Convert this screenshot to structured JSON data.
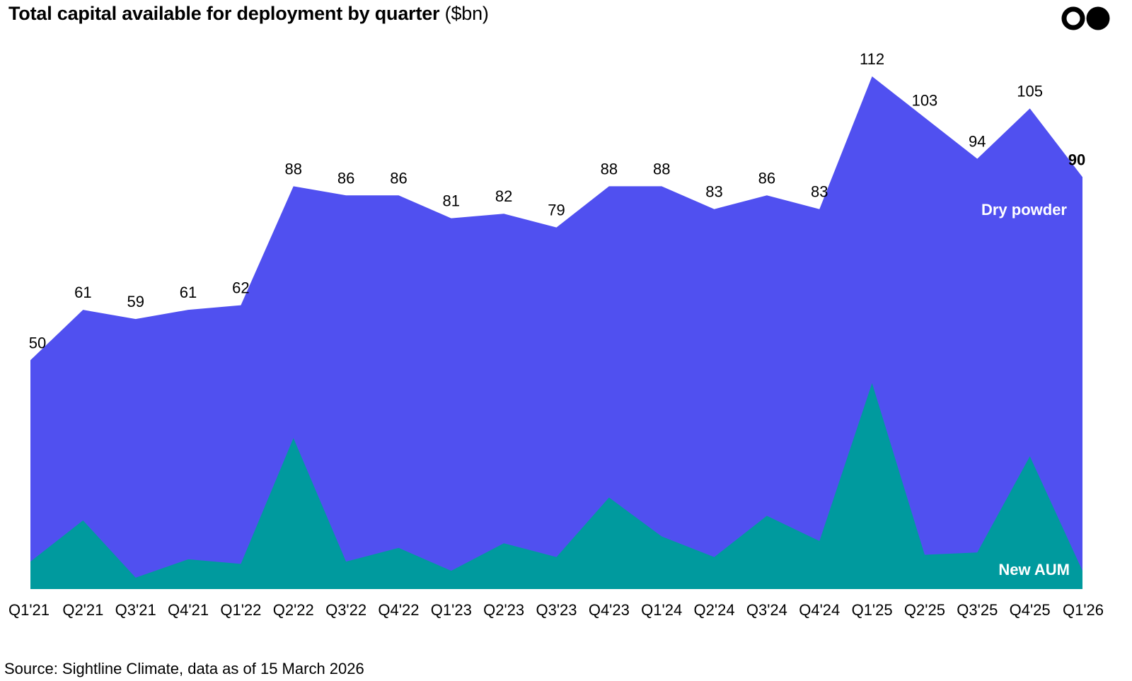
{
  "chart_data": {
    "type": "area",
    "title": "Total capital available for deployment by quarter",
    "title_unit": "($bn)",
    "categories": [
      "Q1'21",
      "Q2'21",
      "Q3'21",
      "Q4'21",
      "Q1'22",
      "Q2'22",
      "Q3'22",
      "Q4'22",
      "Q1'23",
      "Q2'23",
      "Q3'23",
      "Q4'23",
      "Q1'24",
      "Q2'24",
      "Q3'24",
      "Q4'24",
      "Q1'25",
      "Q2'25",
      "Q3'25",
      "Q4'25",
      "Q1'26"
    ],
    "totals": [
      50,
      61,
      59,
      61,
      62,
      88,
      86,
      86,
      81,
      82,
      79,
      88,
      88,
      83,
      86,
      83,
      112,
      103,
      94,
      105,
      90
    ],
    "total_labels": [
      "50",
      "61",
      "59",
      "61",
      "62",
      "88",
      "86",
      "86",
      "81",
      "82",
      "79",
      "88",
      "88",
      "83",
      "86",
      "83",
      "112",
      "103",
      "94",
      "105",
      "90"
    ],
    "series": [
      {
        "name": "New AUM",
        "color": "#009a9e",
        "values": [
          6,
          15,
          2.5,
          6.5,
          5.5,
          33,
          6,
          9,
          4,
          10,
          7,
          20,
          11.5,
          7,
          16,
          10.5,
          45,
          7.5,
          8,
          29,
          4
        ]
      },
      {
        "name": "Dry powder",
        "color": "#5050f0",
        "values": [
          44,
          46,
          56.5,
          54.5,
          56.5,
          55,
          80,
          77,
          77,
          72,
          72,
          68,
          76.5,
          76,
          70,
          72.5,
          67,
          95.5,
          86,
          76,
          86
        ]
      }
    ],
    "ylim": [
      0,
      129
    ],
    "xlabel": "",
    "ylabel": "",
    "grid": false,
    "legend": "inline"
  },
  "logo": {
    "name": "Sightline Climate logo"
  },
  "source": "Source: Sightline Climate, data as of 15 March 2026"
}
